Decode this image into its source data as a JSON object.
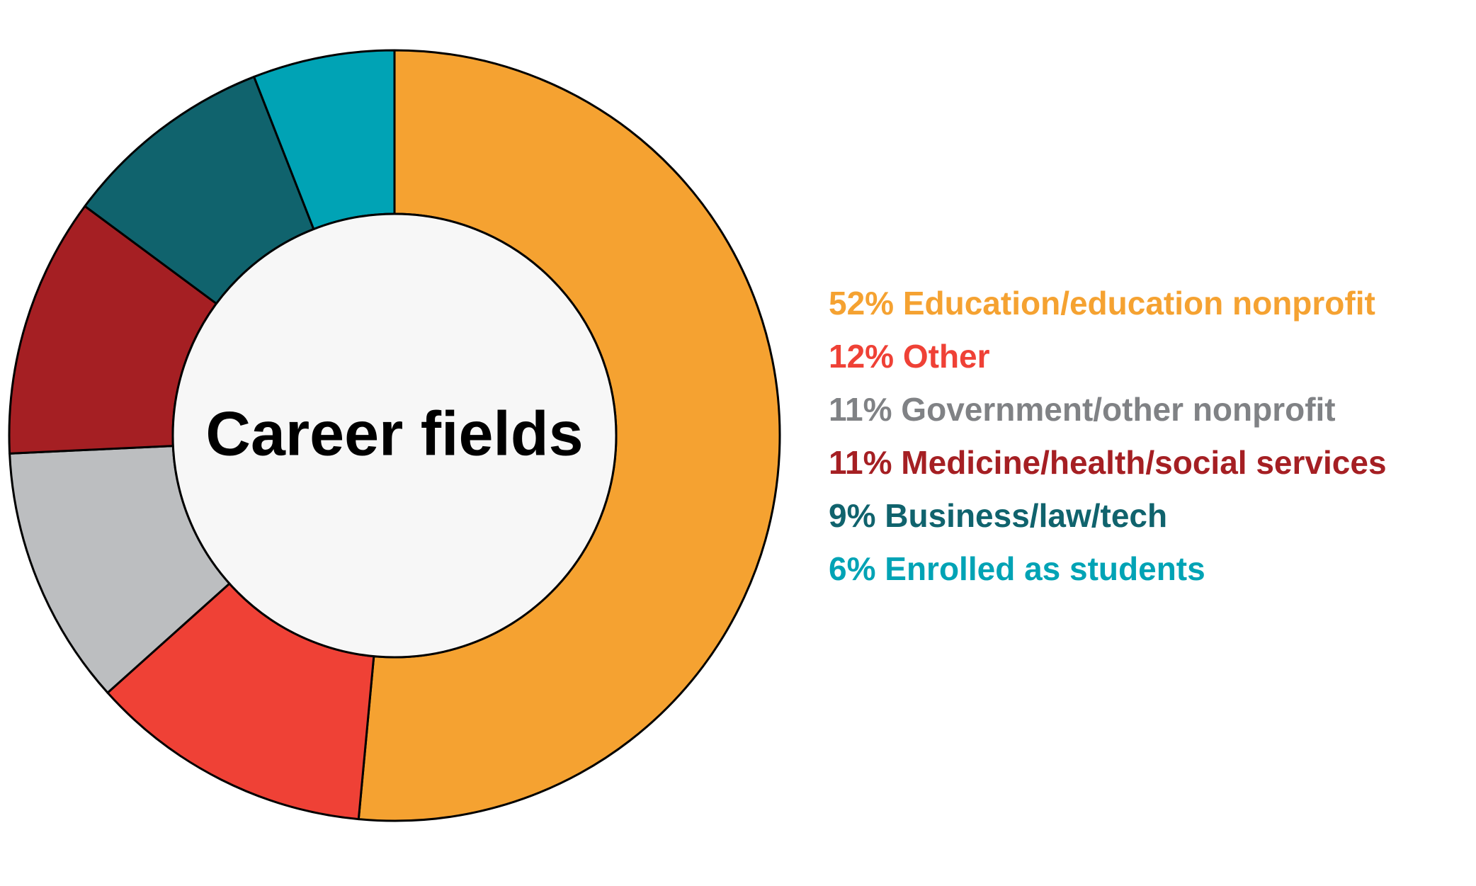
{
  "chart_data": {
    "type": "donut",
    "title": "Career fields",
    "slices": [
      {
        "label": "52% Education/education nonprofit",
        "value": 52,
        "color": "#f5a231"
      },
      {
        "label": "12% Other",
        "value": 12,
        "color": "#ef4136"
      },
      {
        "label": "11% Government/other nonprofit",
        "value": 11,
        "color": "#bcbec0"
      },
      {
        "label": "11% Medicine/health/social services",
        "value": 11,
        "color": "#a51f23"
      },
      {
        "label": "9% Business/law/tech",
        "value": 9,
        "color": "#10636d"
      },
      {
        "label": "6% Enrolled as students",
        "value": 6,
        "color": "#00a3b5"
      }
    ],
    "legend_colors": [
      "#f5a231",
      "#ef4136",
      "#808285",
      "#a51f23",
      "#10636d",
      "#00a3b5"
    ],
    "center_fill": "#f7f7f7",
    "outline_color": "#000000",
    "legend_position": "right"
  }
}
